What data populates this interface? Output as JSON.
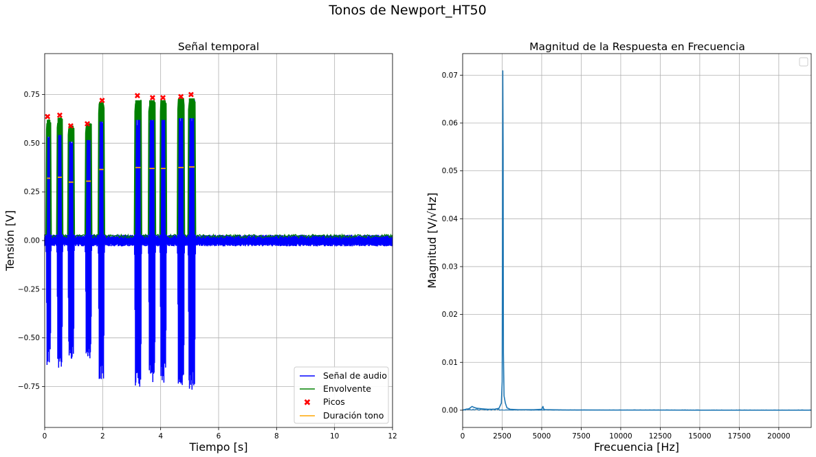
{
  "figure": {
    "title": "Tonos de Newport_HT50"
  },
  "chart_data": [
    {
      "type": "line",
      "title": "Señal temporal",
      "xlabel": "Tiempo [s]",
      "ylabel": "Tensión [V]",
      "xlim": [
        0,
        12
      ],
      "ylim": [
        -0.96,
        0.96
      ],
      "xticks": [
        0,
        2,
        4,
        6,
        8,
        10,
        12
      ],
      "yticks": [
        -0.75,
        -0.5,
        -0.25,
        0.0,
        0.25,
        0.5,
        0.75
      ],
      "xtick_labels": [
        "0",
        "2",
        "4",
        "6",
        "8",
        "10",
        "12"
      ],
      "ytick_labels": [
        "−0.75",
        "−0.50",
        "−0.25",
        "0.00",
        "0.25",
        "0.50",
        "0.75"
      ],
      "grid": true,
      "legend_position": "lower-right",
      "colors": {
        "audio": "#0000ff",
        "envelope": "#008000",
        "peaks": "#ff0000",
        "duration": "#ffa500"
      },
      "noise_floor": {
        "positive": 0.03,
        "negative": -0.03
      },
      "series": [
        {
          "name": "Señal de audio",
          "kind": "line",
          "color": "#0000ff"
        },
        {
          "name": "Envolvente",
          "kind": "line",
          "color": "#008000"
        },
        {
          "name": "Picos",
          "kind": "marker",
          "color": "#ff0000"
        },
        {
          "name": "Duración tono",
          "kind": "line",
          "color": "#ffa500"
        }
      ],
      "tones": [
        {
          "start": 0.05,
          "end": 0.22,
          "peak_time": 0.1,
          "peak": 0.637,
          "env": 0.62,
          "neg": -0.64,
          "duration_level": 0.32
        },
        {
          "start": 0.42,
          "end": 0.62,
          "peak_time": 0.52,
          "peak": 0.644,
          "env": 0.63,
          "neg": -0.66,
          "duration_level": 0.325
        },
        {
          "start": 0.8,
          "end": 1.02,
          "peak_time": 0.9,
          "peak": 0.59,
          "env": 0.59,
          "neg": -0.62,
          "duration_level": 0.3
        },
        {
          "start": 1.4,
          "end": 1.62,
          "peak_time": 1.47,
          "peak": 0.6,
          "env": 0.6,
          "neg": -0.61,
          "duration_level": 0.305
        },
        {
          "start": 1.85,
          "end": 2.06,
          "peak_time": 1.98,
          "peak": 0.72,
          "env": 0.71,
          "neg": -0.73,
          "duration_level": 0.365
        },
        {
          "start": 3.1,
          "end": 3.34,
          "peak_time": 3.2,
          "peak": 0.745,
          "env": 0.72,
          "neg": -0.76,
          "duration_level": 0.375
        },
        {
          "start": 3.58,
          "end": 3.82,
          "peak_time": 3.72,
          "peak": 0.735,
          "env": 0.72,
          "neg": -0.73,
          "duration_level": 0.37
        },
        {
          "start": 3.98,
          "end": 4.2,
          "peak_time": 4.08,
          "peak": 0.735,
          "env": 0.72,
          "neg": -0.73,
          "duration_level": 0.37
        },
        {
          "start": 4.58,
          "end": 4.82,
          "peak_time": 4.7,
          "peak": 0.74,
          "env": 0.73,
          "neg": -0.75,
          "duration_level": 0.375
        },
        {
          "start": 4.95,
          "end": 5.2,
          "peak_time": 5.05,
          "peak": 0.75,
          "env": 0.73,
          "neg": -0.77,
          "duration_level": 0.378
        }
      ]
    },
    {
      "type": "line",
      "title": "Magnitud de la Respuesta en Frecuencia",
      "xlabel": "Frecuencia [Hz]",
      "ylabel": "Magnitud [V/√Hz]",
      "xlim": [
        0,
        22050
      ],
      "ylim": [
        -0.0036,
        0.0745
      ],
      "xticks": [
        0,
        2500,
        5000,
        7500,
        10000,
        12500,
        15000,
        17500,
        20000
      ],
      "yticks": [
        0.0,
        0.01,
        0.02,
        0.03,
        0.04,
        0.05,
        0.06,
        0.07
      ],
      "xtick_labels": [
        "0",
        "2500",
        "5000",
        "7500",
        "10000",
        "12500",
        "15000",
        "17500",
        "20000"
      ],
      "ytick_labels": [
        "0.00",
        "0.01",
        "0.02",
        "0.03",
        "0.04",
        "0.05",
        "0.06",
        "0.07"
      ],
      "grid": true,
      "legend_position": "upper-right",
      "color": "#1f77b4",
      "series": [
        {
          "x": [
            0,
            200,
            400,
            600,
            700,
            900,
            1200,
            1600,
            2000,
            2300,
            2450,
            2500,
            2540,
            2560,
            2580,
            2620,
            2700,
            2800,
            3000,
            3500,
            4000,
            4500,
            5000,
            5080,
            5120,
            5200,
            5500,
            6500,
            8000,
            10000,
            12500,
            15000,
            17500,
            20000,
            22050
          ],
          "y": [
            0.0,
            0.0002,
            0.0003,
            0.0008,
            0.0006,
            0.0004,
            0.0003,
            0.0002,
            0.0002,
            0.0004,
            0.0015,
            0.006,
            0.0709,
            0.055,
            0.012,
            0.003,
            0.0015,
            0.0005,
            0.0002,
            0.0001,
            0.0001,
            0.0001,
            0.0002,
            0.0008,
            0.0003,
            0.0001,
            0.0001,
            5e-05,
            5e-05,
            3e-05,
            3e-05,
            2e-05,
            2e-05,
            2e-05,
            2e-05
          ]
        }
      ]
    }
  ]
}
